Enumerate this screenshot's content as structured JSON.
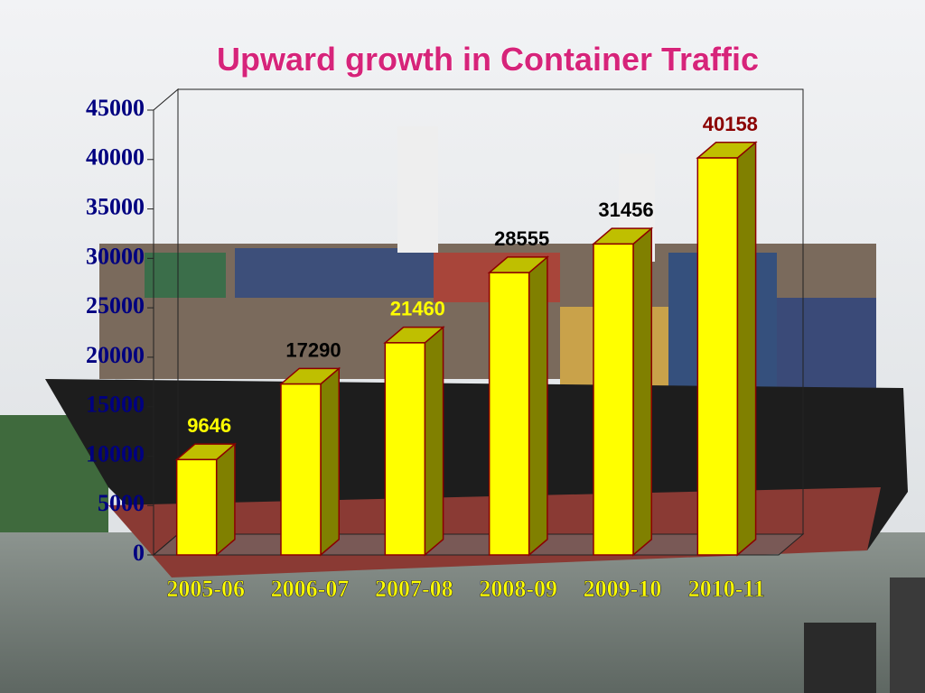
{
  "chart_data": {
    "type": "bar3d",
    "title": "Upward growth in Container Traffic",
    "categories": [
      "2005-06",
      "2006-07",
      "2007-08",
      "2008-09",
      "2009-10",
      "2010-11"
    ],
    "values": [
      9646,
      17290,
      21460,
      28555,
      31456,
      40158
    ],
    "label_colors": [
      "#ffff00",
      "#000000",
      "#ffff00",
      "#000000",
      "#000000",
      "#8b0000"
    ],
    "color": "#ffff00",
    "ylim": [
      0,
      45000
    ],
    "yticks": [
      0,
      5000,
      10000,
      15000,
      20000,
      25000,
      30000,
      35000,
      40000,
      45000
    ]
  }
}
